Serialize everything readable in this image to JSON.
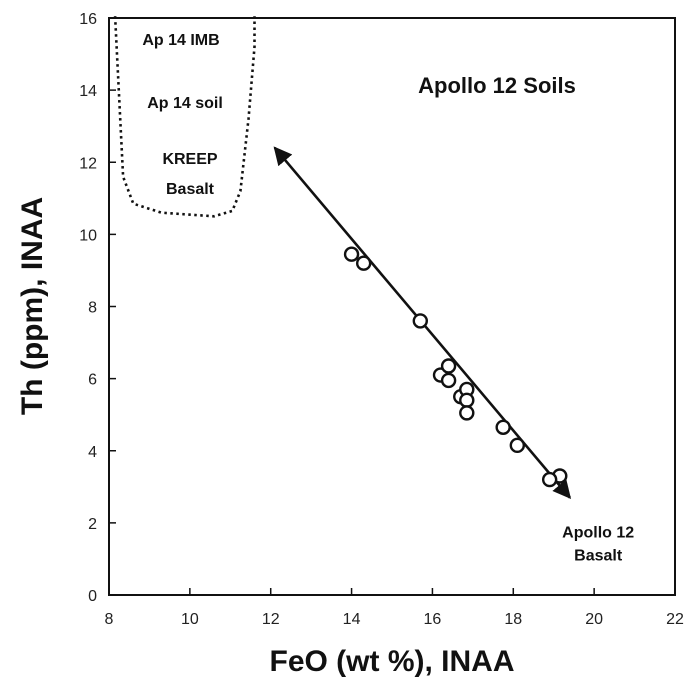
{
  "chart_data": {
    "type": "scatter",
    "title": "Apollo 12 Soils",
    "xlabel": "FeO (wt %), INAA",
    "ylabel": "Th (ppm), INAA",
    "xlim": [
      8,
      22
    ],
    "ylim": [
      0,
      16
    ],
    "x_ticks": [
      8,
      10,
      12,
      14,
      16,
      18,
      20,
      22
    ],
    "y_ticks": [
      0,
      2,
      4,
      6,
      8,
      10,
      12,
      14,
      16
    ],
    "grid": false,
    "series": [
      {
        "marker": "open-circle",
        "points": [
          {
            "x": 14.0,
            "y": 9.45
          },
          {
            "x": 14.3,
            "y": 9.2
          },
          {
            "x": 15.7,
            "y": 7.6
          },
          {
            "x": 16.2,
            "y": 6.1
          },
          {
            "x": 16.4,
            "y": 6.35
          },
          {
            "x": 16.4,
            "y": 5.95
          },
          {
            "x": 16.7,
            "y": 5.5
          },
          {
            "x": 16.85,
            "y": 5.7
          },
          {
            "x": 16.85,
            "y": 5.4
          },
          {
            "x": 16.85,
            "y": 5.05
          },
          {
            "x": 17.75,
            "y": 4.65
          },
          {
            "x": 18.1,
            "y": 4.15
          },
          {
            "x": 19.15,
            "y": 3.3
          },
          {
            "x": 18.9,
            "y": 3.2
          }
        ]
      }
    ],
    "mixing_line": {
      "from": {
        "x": 12.1,
        "y": 12.4
      },
      "to": {
        "x": 19.4,
        "y": 2.7
      },
      "arrowheads": "both"
    },
    "region": {
      "style": "dotted",
      "labels": [
        "Ap 14 IMB",
        "Ap 14 soil",
        "KREEP",
        "Basalt"
      ]
    },
    "annotations": [
      {
        "text": "Apollo 12",
        "x": 20.1,
        "y": 1.6
      },
      {
        "text": "Basalt",
        "x": 20.1,
        "y": 0.95
      }
    ]
  }
}
